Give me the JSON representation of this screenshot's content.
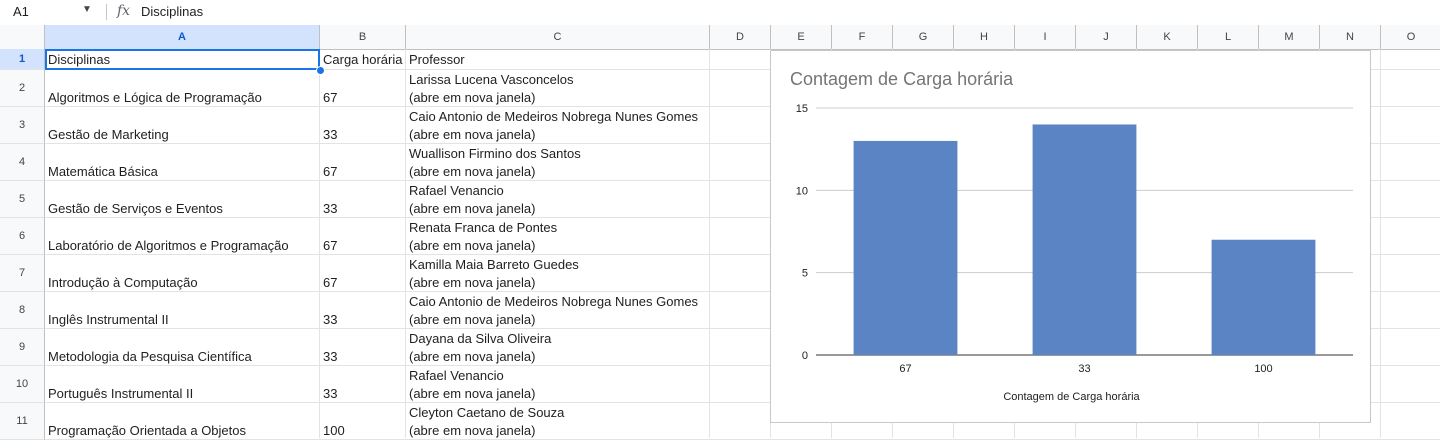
{
  "formula_bar": {
    "cell_ref": "A1",
    "fx_label": "fx",
    "value": "Disciplinas"
  },
  "columns": [
    "A",
    "B",
    "C",
    "D",
    "E",
    "F",
    "G",
    "H",
    "I",
    "J",
    "K",
    "L",
    "M",
    "N",
    "O"
  ],
  "rows": [
    {
      "num": "1",
      "a": "Disciplinas",
      "b": "Carga horária",
      "c1": "Professor",
      "c2": ""
    },
    {
      "num": "2",
      "a": "Algoritmos e Lógica de Programação",
      "b": "67",
      "c1": "Larissa Lucena Vasconcelos",
      "c2": "(abre em nova janela)"
    },
    {
      "num": "3",
      "a": "Gestão de Marketing",
      "b": "33",
      "c1": "Caio Antonio de Medeiros Nobrega Nunes Gomes",
      "c2": "(abre em nova janela)"
    },
    {
      "num": "4",
      "a": "Matemática Básica",
      "b": "67",
      "c1": "Wuallison Firmino dos Santos",
      "c2": "(abre em nova janela)"
    },
    {
      "num": "5",
      "a": "Gestão de Serviços e Eventos",
      "b": "33",
      "c1": "Rafael Venancio",
      "c2": "(abre em nova janela)"
    },
    {
      "num": "6",
      "a": "Laboratório de Algoritmos e Programação",
      "b": "67",
      "c1": "Renata Franca de Pontes",
      "c2": "(abre em nova janela)"
    },
    {
      "num": "7",
      "a": "Introdução à Computação",
      "b": "67",
      "c1": "Kamilla Maia Barreto Guedes",
      "c2": "(abre em nova janela)"
    },
    {
      "num": "8",
      "a": "Inglês Instrumental II",
      "b": "33",
      "c1": "Caio Antonio de Medeiros Nobrega Nunes Gomes",
      "c2": "(abre em nova janela)"
    },
    {
      "num": "9",
      "a": "Metodologia da Pesquisa Científica",
      "b": "33",
      "c1": "Dayana da Silva Oliveira",
      "c2": "(abre em nova janela)"
    },
    {
      "num": "10",
      "a": "Português Instrumental II",
      "b": "33",
      "c1": "Rafael Venancio",
      "c2": "(abre em nova janela)"
    },
    {
      "num": "11",
      "a": "Programação Orientada a Objetos",
      "b": "100",
      "c1": "Cleyton Caetano de Souza",
      "c2": "(abre em nova janela)"
    }
  ],
  "chart_data": {
    "type": "bar",
    "title": "Contagem de Carga horária",
    "xlabel": "Contagem de Carga horária",
    "ylabel": "",
    "categories": [
      "67",
      "33",
      "100"
    ],
    "values": [
      13,
      14,
      7
    ],
    "ylim": [
      0,
      15
    ],
    "yticks": [
      0,
      5,
      10,
      15
    ],
    "grid": true,
    "bar_color": "#5b84c4"
  }
}
